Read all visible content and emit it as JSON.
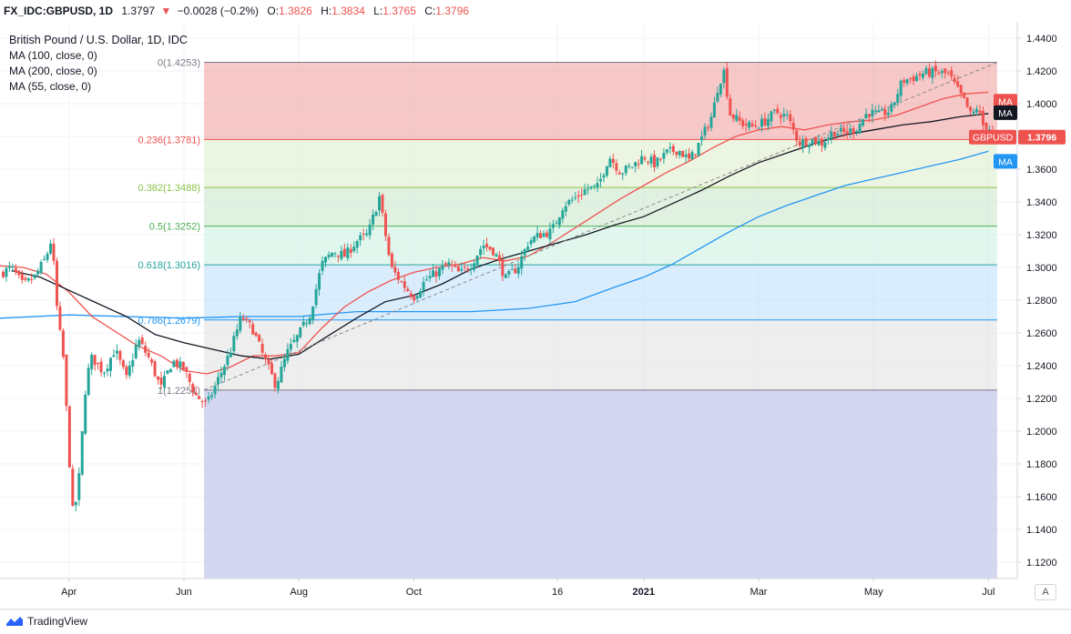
{
  "header": {
    "symbol": "FX_IDC:GBPUSD, 1D",
    "last": "1.3797",
    "change_arrow": "▼",
    "change": "−0.0028 (−0.2%)",
    "o_label": "O:",
    "o_value": "1.3826",
    "h_label": "H:",
    "h_value": "1.3834",
    "l_label": "L:",
    "l_value": "1.3765",
    "c_label": "C:",
    "c_value": "1.3796"
  },
  "legend": {
    "title": "British Pound / U.S. Dollar, 1D, IDC",
    "ma1": "MA (100, close, 0)",
    "ma2": "MA (200, close, 0)",
    "ma3": "MA (55, close, 0)"
  },
  "footer": {
    "brand": "TradingView",
    "auto_button": "A"
  },
  "colors": {
    "up": "#26a69a",
    "down": "#ef5350",
    "ma55": "#2196f3",
    "ma100": "#ef5350",
    "ma200": "#131722",
    "fib_0_236": "#ef9a9a",
    "fib_236_382": "#dcedc8",
    "fib_382_5": "#c8e6c9",
    "fib_5_618": "#c8f0e0",
    "fib_618_786": "#bbdefb",
    "fib_786_1": "#e0e0e0",
    "fib_below": "#c5cae9"
  },
  "chart_data": {
    "type": "candlestick",
    "title": "British Pound / U.S. Dollar, 1D, IDC",
    "ylim": [
      1.11,
      1.45
    ],
    "y_ticks": [
      "1.4400",
      "1.4200",
      "1.4000",
      "1.3800",
      "1.3600",
      "1.3400",
      "1.3200",
      "1.3000",
      "1.2800",
      "1.2600",
      "1.2400",
      "1.2200",
      "1.2000",
      "1.1800",
      "1.1600",
      "1.1400",
      "1.1200"
    ],
    "x_ticks": [
      "Apr",
      "Jun",
      "Aug",
      "Oct",
      "16",
      "2021",
      "Mar",
      "May",
      "Jul"
    ],
    "x_tick_values": [
      3,
      5,
      7,
      9,
      11.5,
      13,
      15,
      17,
      19
    ],
    "x_range": [
      1.8,
      19.5
    ],
    "fibonacci": [
      {
        "label": "0(1.4253)",
        "value": 1.4253
      },
      {
        "label": "0.236(1.3781)",
        "value": 1.3781
      },
      {
        "label": "0.382(1.3488)",
        "value": 1.3488
      },
      {
        "label": "0.5(1.3252)",
        "value": 1.3252
      },
      {
        "label": "0.618(1.3016)",
        "value": 1.3016
      },
      {
        "label": "0.786(1.2679)",
        "value": 1.2679
      },
      {
        "label": "1(1.2251)",
        "value": 1.2251
      }
    ],
    "fib_start_x": 5.35,
    "fib_end_x": 19.15,
    "price_labels": [
      {
        "text": "MA",
        "value": 1.4015,
        "color": "#ef5350"
      },
      {
        "text": "MA",
        "value": 1.3945,
        "color": "#131722"
      },
      {
        "text": "GBPUSD",
        "value": 1.3796,
        "color": "#ef5350"
      },
      {
        "text": "1.3796",
        "value": 1.3796,
        "color": "#ef5350"
      },
      {
        "text": "MA",
        "value": 1.3648,
        "color": "#2196f3"
      }
    ],
    "close_path": [
      [
        1.8,
        1.296
      ],
      [
        2.0,
        1.3
      ],
      [
        2.2,
        1.289
      ],
      [
        2.4,
        1.294
      ],
      [
        2.6,
        1.306
      ],
      [
        2.7,
        1.318
      ],
      [
        2.8,
        1.271
      ],
      [
        2.9,
        1.245
      ],
      [
        3.0,
        1.188
      ],
      [
        3.05,
        1.15
      ],
      [
        3.15,
        1.16
      ],
      [
        3.3,
        1.232
      ],
      [
        3.4,
        1.245
      ],
      [
        3.6,
        1.236
      ],
      [
        3.8,
        1.25
      ],
      [
        4.0,
        1.232
      ],
      [
        4.2,
        1.256
      ],
      [
        4.4,
        1.244
      ],
      [
        4.6,
        1.226
      ],
      [
        4.8,
        1.243
      ],
      [
        5.0,
        1.238
      ],
      [
        5.2,
        1.222
      ],
      [
        5.4,
        1.216
      ],
      [
        5.6,
        1.232
      ],
      [
        5.8,
        1.248
      ],
      [
        6.0,
        1.27
      ],
      [
        6.2,
        1.262
      ],
      [
        6.4,
        1.244
      ],
      [
        6.6,
        1.228
      ],
      [
        6.8,
        1.248
      ],
      [
        7.0,
        1.259
      ],
      [
        7.2,
        1.272
      ],
      [
        7.4,
        1.302
      ],
      [
        7.6,
        1.31
      ],
      [
        7.8,
        1.307
      ],
      [
        8.0,
        1.316
      ],
      [
        8.2,
        1.32
      ],
      [
        8.4,
        1.343
      ],
      [
        8.6,
        1.3
      ],
      [
        8.8,
        1.29
      ],
      [
        9.0,
        1.282
      ],
      [
        9.2,
        1.292
      ],
      [
        9.4,
        1.297
      ],
      [
        9.6,
        1.302
      ],
      [
        9.8,
        1.296
      ],
      [
        10.0,
        1.302
      ],
      [
        10.2,
        1.314
      ],
      [
        10.4,
        1.31
      ],
      [
        10.6,
        1.293
      ],
      [
        10.8,
        1.3
      ],
      [
        11.0,
        1.316
      ],
      [
        11.2,
        1.32
      ],
      [
        11.4,
        1.322
      ],
      [
        11.6,
        1.338
      ],
      [
        11.8,
        1.342
      ],
      [
        12.0,
        1.348
      ],
      [
        12.2,
        1.349
      ],
      [
        12.4,
        1.368
      ],
      [
        12.6,
        1.358
      ],
      [
        12.8,
        1.362
      ],
      [
        13.0,
        1.368
      ],
      [
        13.2,
        1.363
      ],
      [
        13.4,
        1.37
      ],
      [
        13.6,
        1.372
      ],
      [
        13.8,
        1.365
      ],
      [
        14.0,
        1.378
      ],
      [
        14.2,
        1.394
      ],
      [
        14.3,
        1.412
      ],
      [
        14.4,
        1.42
      ],
      [
        14.5,
        1.394
      ],
      [
        14.7,
        1.388
      ],
      [
        14.9,
        1.386
      ],
      [
        15.1,
        1.389
      ],
      [
        15.3,
        1.395
      ],
      [
        15.5,
        1.392
      ],
      [
        15.7,
        1.376
      ],
      [
        15.9,
        1.378
      ],
      [
        16.1,
        1.376
      ],
      [
        16.3,
        1.383
      ],
      [
        16.5,
        1.382
      ],
      [
        16.7,
        1.385
      ],
      [
        16.9,
        1.395
      ],
      [
        17.1,
        1.393
      ],
      [
        17.3,
        1.396
      ],
      [
        17.5,
        1.414
      ],
      [
        17.7,
        1.416
      ],
      [
        17.9,
        1.419
      ],
      [
        18.1,
        1.419
      ],
      [
        18.3,
        1.418
      ],
      [
        18.4,
        1.412
      ],
      [
        18.5,
        1.406
      ],
      [
        18.6,
        1.4
      ],
      [
        18.7,
        1.392
      ],
      [
        18.8,
        1.398
      ],
      [
        18.9,
        1.387
      ],
      [
        19.0,
        1.386
      ],
      [
        19.1,
        1.38
      ]
    ],
    "series": [
      {
        "name": "MA (55, close, 0)",
        "color": "#2196f3",
        "points": [
          [
            1.8,
            1.269
          ],
          [
            3.0,
            1.271
          ],
          [
            4.0,
            1.27
          ],
          [
            5.0,
            1.269
          ],
          [
            6.0,
            1.27
          ],
          [
            7.0,
            1.27
          ],
          [
            8.0,
            1.273
          ],
          [
            9.0,
            1.273
          ],
          [
            10.0,
            1.273
          ],
          [
            11.0,
            1.275
          ],
          [
            11.8,
            1.279
          ],
          [
            12.5,
            1.288
          ],
          [
            13.0,
            1.294
          ],
          [
            13.5,
            1.302
          ],
          [
            14.0,
            1.312
          ],
          [
            14.5,
            1.322
          ],
          [
            15.0,
            1.331
          ],
          [
            15.5,
            1.338
          ],
          [
            16.0,
            1.344
          ],
          [
            16.5,
            1.35
          ],
          [
            17.0,
            1.354
          ],
          [
            17.5,
            1.358
          ],
          [
            18.0,
            1.362
          ],
          [
            18.5,
            1.366
          ],
          [
            19.0,
            1.371
          ]
        ]
      },
      {
        "name": "MA (100, close, 0)",
        "color": "#ef5350",
        "points": [
          [
            1.8,
            1.301
          ],
          [
            2.2,
            1.3
          ],
          [
            2.6,
            1.296
          ],
          [
            3.0,
            1.285
          ],
          [
            3.4,
            1.27
          ],
          [
            3.8,
            1.261
          ],
          [
            4.2,
            1.252
          ],
          [
            4.6,
            1.246
          ],
          [
            5.0,
            1.237
          ],
          [
            5.4,
            1.235
          ],
          [
            5.8,
            1.239
          ],
          [
            6.2,
            1.246
          ],
          [
            6.6,
            1.246
          ],
          [
            7.0,
            1.248
          ],
          [
            7.4,
            1.263
          ],
          [
            7.8,
            1.276
          ],
          [
            8.2,
            1.285
          ],
          [
            8.6,
            1.292
          ],
          [
            9.0,
            1.297
          ],
          [
            9.4,
            1.3
          ],
          [
            9.8,
            1.302
          ],
          [
            10.2,
            1.306
          ],
          [
            10.6,
            1.304
          ],
          [
            11.0,
            1.307
          ],
          [
            11.4,
            1.315
          ],
          [
            11.8,
            1.324
          ],
          [
            12.2,
            1.333
          ],
          [
            12.6,
            1.342
          ],
          [
            13.0,
            1.35
          ],
          [
            13.4,
            1.358
          ],
          [
            13.8,
            1.365
          ],
          [
            14.2,
            1.373
          ],
          [
            14.6,
            1.38
          ],
          [
            15.0,
            1.384
          ],
          [
            15.4,
            1.386
          ],
          [
            15.8,
            1.384
          ],
          [
            16.2,
            1.387
          ],
          [
            16.6,
            1.389
          ],
          [
            17.0,
            1.39
          ],
          [
            17.4,
            1.393
          ],
          [
            17.8,
            1.398
          ],
          [
            18.2,
            1.403
          ],
          [
            18.6,
            1.406
          ],
          [
            19.0,
            1.407
          ]
        ]
      },
      {
        "name": "MA (200, close, 0)",
        "color": "#131722",
        "points": [
          [
            2.0,
            1.298
          ],
          [
            2.5,
            1.294
          ],
          [
            3.0,
            1.286
          ],
          [
            3.5,
            1.278
          ],
          [
            4.0,
            1.27
          ],
          [
            4.5,
            1.259
          ],
          [
            5.0,
            1.254
          ],
          [
            5.5,
            1.25
          ],
          [
            6.0,
            1.246
          ],
          [
            6.5,
            1.244
          ],
          [
            7.0,
            1.247
          ],
          [
            7.5,
            1.258
          ],
          [
            8.0,
            1.269
          ],
          [
            8.5,
            1.279
          ],
          [
            9.0,
            1.283
          ],
          [
            9.5,
            1.29
          ],
          [
            10.0,
            1.299
          ],
          [
            10.5,
            1.305
          ],
          [
            11.0,
            1.31
          ],
          [
            11.5,
            1.315
          ],
          [
            12.0,
            1.32
          ],
          [
            12.5,
            1.326
          ],
          [
            13.0,
            1.331
          ],
          [
            13.5,
            1.339
          ],
          [
            14.0,
            1.347
          ],
          [
            14.5,
            1.356
          ],
          [
            15.0,
            1.364
          ],
          [
            15.5,
            1.37
          ],
          [
            16.0,
            1.376
          ],
          [
            16.5,
            1.381
          ],
          [
            17.0,
            1.384
          ],
          [
            17.5,
            1.387
          ],
          [
            18.0,
            1.389
          ],
          [
            18.5,
            1.392
          ],
          [
            19.0,
            1.394
          ]
        ]
      },
      {
        "name": "",
        "color": "#888888",
        "points": [
          [
            5.35,
            1.2251
          ],
          [
            19.15,
            1.4253
          ]
        ]
      }
    ]
  }
}
